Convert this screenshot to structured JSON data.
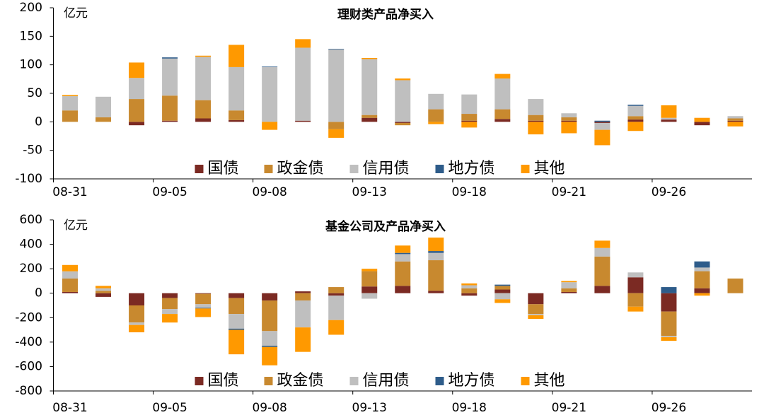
{
  "chart_data": [
    {
      "type": "bar",
      "stacked": true,
      "title": "理财类产品净买入",
      "y_label": "亿元",
      "categories": [
        "08-31",
        null,
        null,
        "09-05",
        null,
        null,
        "09-08",
        null,
        null,
        "09-13",
        null,
        null,
        "09-18",
        null,
        null,
        "09-21",
        null,
        null,
        "09-26",
        null,
        null
      ],
      "ylim": [
        -100,
        200
      ],
      "yticks": [
        -100,
        -50,
        0,
        50,
        100,
        150,
        200
      ],
      "legend": "lower center",
      "series": [
        {
          "name": "国债",
          "color": "#7b2a23",
          "values": [
            0,
            0,
            -6,
            2,
            6,
            3,
            0,
            2,
            0,
            7,
            -2,
            0,
            2,
            5,
            2,
            2,
            -2,
            4,
            4,
            -6,
            2
          ]
        },
        {
          "name": "政金债",
          "color": "#c8892f",
          "values": [
            20,
            8,
            40,
            44,
            32,
            17,
            0,
            0,
            -13,
            5,
            -4,
            22,
            12,
            17,
            10,
            6,
            0,
            6,
            0,
            0,
            4
          ]
        },
        {
          "name": "信用债",
          "color": "#bfbfbf",
          "values": [
            25,
            36,
            37,
            65,
            76,
            76,
            96,
            128,
            127,
            98,
            73,
            27,
            34,
            54,
            28,
            7,
            -12,
            18,
            3,
            0,
            4
          ]
        },
        {
          "name": "地方债",
          "color": "#2e5c8a",
          "values": [
            0,
            0,
            0,
            2,
            0,
            0,
            1,
            0,
            1,
            0,
            0,
            0,
            0,
            0,
            0,
            0,
            2,
            2,
            0,
            0,
            0
          ]
        },
        {
          "name": "其他",
          "color": "#ff9900",
          "values": [
            2,
            0,
            27,
            0,
            2,
            39,
            -14,
            15,
            -15,
            2,
            3,
            -4,
            -10,
            8,
            -22,
            -20,
            -27,
            -16,
            22,
            7,
            -8
          ]
        }
      ]
    },
    {
      "type": "bar",
      "stacked": true,
      "title": "基金公司及产品净买入",
      "y_label": "亿元",
      "categories": [
        "08-31",
        null,
        null,
        "09-05",
        null,
        null,
        "09-08",
        null,
        null,
        "09-13",
        null,
        null,
        "09-18",
        null,
        null,
        "09-21",
        null,
        null,
        "09-26",
        null,
        null
      ],
      "ylim": [
        -800,
        600
      ],
      "yticks": [
        -800,
        -600,
        -400,
        -200,
        0,
        200,
        400,
        600
      ],
      "legend": "lower center",
      "series": [
        {
          "name": "国债",
          "color": "#7b2a23",
          "values": [
            10,
            -30,
            -100,
            -40,
            -5,
            -40,
            -60,
            15,
            -20,
            55,
            60,
            20,
            -20,
            30,
            -90,
            10,
            60,
            130,
            -150,
            40,
            0
          ]
        },
        {
          "name": "政金债",
          "color": "#c8892f",
          "values": [
            110,
            20,
            -140,
            -90,
            -85,
            -130,
            -250,
            -60,
            50,
            125,
            200,
            250,
            40,
            30,
            -80,
            30,
            240,
            -110,
            -200,
            140,
            120
          ]
        },
        {
          "name": "信用债",
          "color": "#bfbfbf",
          "values": [
            59,
            20,
            -20,
            -40,
            -30,
            -120,
            -120,
            -220,
            -200,
            -45,
            60,
            60,
            25,
            -50,
            -10,
            50,
            70,
            40,
            -10,
            30,
            0
          ]
        },
        {
          "name": "地方债",
          "color": "#2e5c8a",
          "values": [
            0,
            0,
            0,
            0,
            -5,
            -10,
            -10,
            0,
            0,
            0,
            10,
            15,
            0,
            10,
            0,
            0,
            0,
            0,
            50,
            50,
            0
          ]
        },
        {
          "name": "其他",
          "color": "#ff9900",
          "values": [
            52,
            20,
            -60,
            -70,
            -70,
            -200,
            -150,
            -200,
            -120,
            20,
            60,
            110,
            15,
            -30,
            -30,
            10,
            60,
            -40,
            -30,
            -20,
            0
          ]
        }
      ]
    }
  ]
}
